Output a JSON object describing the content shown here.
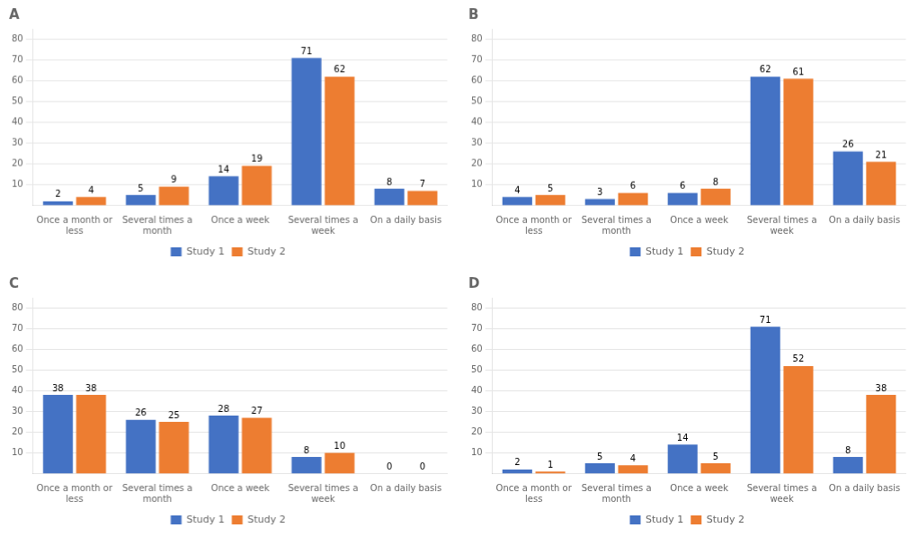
{
  "chart_data": [
    {
      "type": "bar",
      "title": "A",
      "categories": [
        "Once a month or\nless",
        "Several times a\nmonth",
        "Once a week",
        "Several times a\nweek",
        "On a daily basis"
      ],
      "series": [
        {
          "name": "Study 1",
          "color": "#4472C4",
          "values": [
            2,
            5,
            14,
            71,
            8
          ]
        },
        {
          "name": "Study 2",
          "color": "#ED7D31",
          "values": [
            4,
            9,
            19,
            62,
            7
          ]
        }
      ],
      "ylim": [
        0,
        85
      ],
      "yticks": [
        10,
        20,
        30,
        40,
        50,
        60,
        70,
        80
      ],
      "grid": true,
      "legend": "bottom",
      "data_labels": true
    },
    {
      "type": "bar",
      "title": "B",
      "categories": [
        "Once a month or\nless",
        "Several times a\nmonth",
        "Once a week",
        "Several times a\nweek",
        "On a daily basis"
      ],
      "series": [
        {
          "name": "Study 1",
          "color": "#4472C4",
          "values": [
            4,
            3,
            6,
            62,
            26
          ]
        },
        {
          "name": "Study 2",
          "color": "#ED7D31",
          "values": [
            5,
            6,
            8,
            61,
            21
          ]
        }
      ],
      "ylim": [
        0,
        85
      ],
      "yticks": [
        10,
        20,
        30,
        40,
        50,
        60,
        70,
        80
      ],
      "grid": true,
      "legend": "bottom",
      "data_labels": true
    },
    {
      "type": "bar",
      "title": "C",
      "categories": [
        "Once a month or\nless",
        "Several times a\nmonth",
        "Once a week",
        "Several times a\nweek",
        "On a daily basis"
      ],
      "series": [
        {
          "name": "Study 1",
          "color": "#4472C4",
          "values": [
            38,
            26,
            28,
            8,
            0
          ]
        },
        {
          "name": "Study 2",
          "color": "#ED7D31",
          "values": [
            38,
            25,
            27,
            10,
            0
          ]
        }
      ],
      "ylim": [
        0,
        85
      ],
      "yticks": [
        10,
        20,
        30,
        40,
        50,
        60,
        70,
        80
      ],
      "grid": true,
      "legend": "bottom",
      "data_labels": true
    },
    {
      "type": "bar",
      "title": "D",
      "categories": [
        "Once a month or\nless",
        "Several times a\nmonth",
        "Once a week",
        "Several times a\nweek",
        "On a daily basis"
      ],
      "series": [
        {
          "name": "Study 1",
          "color": "#4472C4",
          "values": [
            2,
            5,
            14,
            71,
            8
          ]
        },
        {
          "name": "Study 2",
          "color": "#ED7D31",
          "values": [
            1,
            4,
            5,
            52,
            38
          ]
        }
      ],
      "ylim": [
        0,
        85
      ],
      "yticks": [
        10,
        20,
        30,
        40,
        50,
        60,
        70,
        80
      ],
      "grid": true,
      "legend": "bottom",
      "data_labels": true
    }
  ]
}
